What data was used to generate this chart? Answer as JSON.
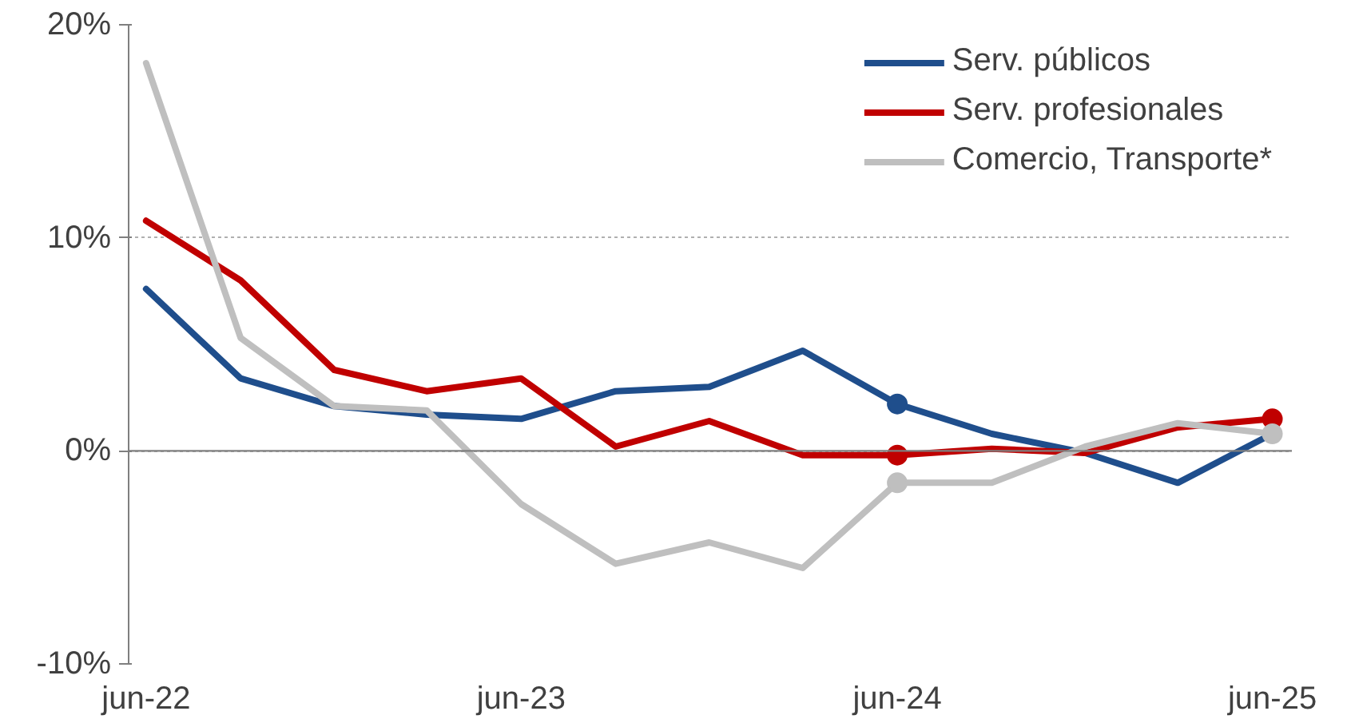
{
  "chart_data": {
    "type": "line",
    "x": [
      "2022-06",
      "2022-09",
      "2022-12",
      "2023-03",
      "2023-06",
      "2023-09",
      "2023-12",
      "2024-03",
      "2024-06",
      "2024-09",
      "2024-12",
      "2025-03",
      "2025-06"
    ],
    "series": [
      {
        "name": "Serv. públicos",
        "color": "#1f4e8c",
        "values": [
          7.6,
          3.4,
          2.1,
          1.7,
          1.5,
          2.8,
          3.0,
          4.7,
          2.2,
          0.8,
          -0.1,
          -1.5,
          0.8
        ]
      },
      {
        "name": "Serv. profesionales",
        "color": "#c00000",
        "values": [
          10.8,
          8.0,
          3.8,
          2.8,
          3.4,
          0.2,
          1.4,
          -0.2,
          -0.2,
          0.1,
          -0.1,
          1.1,
          1.5
        ]
      },
      {
        "name": "Comercio, Transporte*",
        "color": "#bfbfbf",
        "values": [
          18.2,
          5.3,
          2.1,
          1.9,
          -2.5,
          -5.3,
          -4.3,
          -5.5,
          -1.5,
          -1.5,
          0.2,
          1.3,
          0.8
        ]
      },
      {
        "type": "scatter",
        "marker": "circle",
        "color": "#1f4e8c",
        "x": [
          "2024-06"
        ],
        "values": [
          2.2
        ]
      },
      {
        "type": "scatter",
        "marker": "circle",
        "color": "#c00000",
        "x": [
          "2024-06",
          "2025-06"
        ],
        "values": [
          -0.2,
          1.5
        ]
      },
      {
        "type": "scatter",
        "marker": "circle",
        "color": "#bfbfbf",
        "x": [
          "2024-06",
          "2025-06"
        ],
        "values": [
          -1.5,
          0.8
        ]
      }
    ],
    "xlim": [
      "2022-05-15",
      "2025-06-20"
    ],
    "xticks": [
      {
        "value": "2022-06",
        "label": "jun-22"
      },
      {
        "value": "2023-06",
        "label": "jun-23"
      },
      {
        "value": "2024-06",
        "label": "jun-24"
      },
      {
        "value": "2025-06",
        "label": "jun-25"
      }
    ],
    "ylim": [
      -10,
      20
    ],
    "yticks": [
      {
        "value": -10,
        "label": "-10%"
      },
      {
        "value": 0,
        "label": "0%"
      },
      {
        "value": 10,
        "label": "10%"
      },
      {
        "value": 20,
        "label": "20%"
      }
    ],
    "ref_lines": [
      {
        "axis": "y",
        "value": 0,
        "color": "#7f7f7f"
      }
    ],
    "grid": "y",
    "legend": "top right",
    "marker": "none",
    "line_style": "solid"
  }
}
